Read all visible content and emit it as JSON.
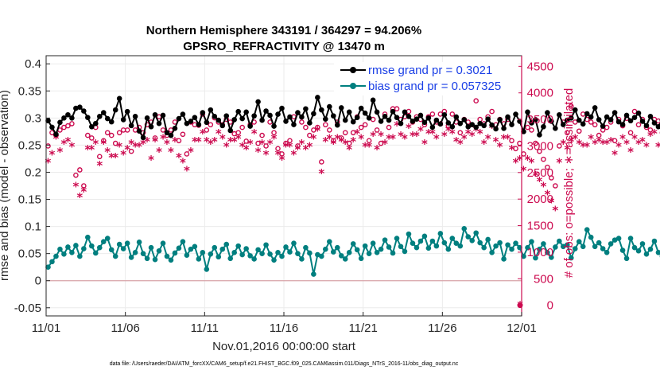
{
  "colors": {
    "rmse": "#000000",
    "bias": "#007f7f",
    "obs": "#cc0a4f",
    "zero_line": "#d9a3a8",
    "legend_text": "#1a3fe6",
    "grid": "#ebebeb"
  },
  "chart_data": {
    "type": "line",
    "title": "Northern Hemisphere 343191 / 364297 = 94.206%",
    "subtitle": "GPSRO_REFRACTIVITY @ 13470 m",
    "xlabel": "Nov.01,2016 00:00:00 start",
    "ylabel_left": "rmse and bias (model - observation)",
    "ylabel_right": "# of obs: o=possible; ∗=assimilated",
    "footnote": "data file: /Users/raeder/DAI/ATM_forcXX/CAM6_setup/f.e21.FHIST_BGC.f09_025.CAM6assim.011/Diags_NTrS_2016-11/obs_diag_output.nc",
    "x_tick_labels": [
      "11/01",
      "11/06",
      "11/11",
      "11/16",
      "11/21",
      "11/26",
      "12/01"
    ],
    "x_tick_days": [
      0,
      5,
      10,
      15,
      20,
      25,
      30
    ],
    "xlim": [
      0,
      30
    ],
    "ylim_left": [
      -0.065,
      0.415
    ],
    "left_ticks": [
      -0.05,
      0,
      0.05,
      0.1,
      0.15,
      0.2,
      0.25,
      0.3,
      0.35,
      0.4
    ],
    "left_tick_labels": [
      "-0.05",
      "0",
      "0.05",
      "0.1",
      "0.15",
      "0.2",
      "0.25",
      "0.3",
      "0.35",
      "0.4"
    ],
    "ylim_right": [
      -200,
      4700
    ],
    "right_ticks": [
      0,
      500,
      1000,
      1500,
      2000,
      2500,
      3000,
      3500,
      4000,
      4500
    ],
    "right_tick_labels": [
      "0",
      "500",
      "1000",
      "1500",
      "2000",
      "2500",
      "3000",
      "3500",
      "4000",
      "4500"
    ],
    "legend": [
      {
        "name": "rmse grand pr = 0.3021",
        "series": "rmse"
      },
      {
        "name": "bias grand pr = 0.057325",
        "series": "bias"
      }
    ],
    "legend_position": "top-right",
    "step_days": 0.25,
    "series": [
      {
        "name": "rmse",
        "axis": "left",
        "values": [
          0.295,
          0.283,
          0.27,
          0.292,
          0.3,
          0.306,
          0.3,
          0.318,
          0.32,
          0.313,
          0.301,
          0.284,
          0.29,
          0.303,
          0.31,
          0.299,
          0.293,
          0.315,
          0.336,
          0.297,
          0.312,
          0.286,
          0.303,
          0.276,
          0.264,
          0.3,
          0.284,
          0.306,
          0.29,
          0.305,
          0.273,
          0.268,
          0.281,
          0.299,
          0.307,
          0.29,
          0.294,
          0.301,
          0.288,
          0.31,
          0.292,
          0.315,
          0.303,
          0.296,
          0.286,
          0.304,
          0.277,
          0.297,
          0.312,
          0.299,
          0.311,
          0.285,
          0.304,
          0.33,
          0.296,
          0.313,
          0.305,
          0.285,
          0.307,
          0.318,
          0.294,
          0.302,
          0.288,
          0.31,
          0.302,
          0.317,
          0.291,
          0.308,
          0.338,
          0.315,
          0.298,
          0.321,
          0.304,
          0.287,
          0.319,
          0.296,
          0.311,
          0.293,
          0.301,
          0.318,
          0.309,
          0.3,
          0.333,
          0.311,
          0.294,
          0.303,
          0.296,
          0.312,
          0.301,
          0.29,
          0.311,
          0.303,
          0.294,
          0.298,
          0.305,
          0.292,
          0.3,
          0.283,
          0.296,
          0.289,
          0.306,
          0.291,
          0.284,
          0.302,
          0.29,
          0.297,
          0.284,
          0.288,
          0.283,
          0.29,
          0.286,
          0.298,
          0.287,
          0.28,
          0.297,
          0.281,
          0.302,
          0.288,
          0.307,
          0.294,
          0.275,
          0.311,
          0.291,
          0.297,
          0.269,
          0.284,
          0.31,
          0.294,
          0.281,
          0.306,
          0.288,
          0.296,
          0.3,
          0.315,
          0.296,
          0.289,
          0.308,
          0.302,
          0.319,
          0.297,
          0.285,
          0.302,
          0.297,
          0.31,
          0.293,
          0.288,
          0.305,
          0.295,
          0.301,
          0.309,
          0.294,
          0.286,
          0.303,
          0.291,
          0.284,
          0.296,
          0.284,
          0.278,
          0.29,
          0.288,
          0.297,
          0.304,
          0.29,
          0.293,
          0.305,
          0.295,
          0.309,
          0.301,
          0.296,
          0.318,
          0.304,
          0.297,
          0.31,
          0.29,
          0.324,
          0.302,
          0.296,
          0.307,
          0.321,
          0.304,
          0.316,
          0.301,
          0.305,
          0.296,
          0.31,
          0.3,
          0.306,
          0.319,
          0.303,
          0.298,
          0.309,
          0.302,
          0.32,
          0.301,
          0.31,
          0.296,
          0.302,
          0.329,
          0.3,
          0.318,
          0.306,
          0.296,
          0.311,
          0.301,
          0.31,
          0.315,
          0.305,
          0.322,
          0.302,
          0.315,
          0.324,
          0.303,
          0.319,
          0.326,
          0.309,
          0.297,
          0.311,
          0.326,
          0.304,
          0.346,
          0.317,
          0.331,
          0.306,
          0.32,
          0.312,
          0.325,
          0.343,
          0.324,
          0.307
        ]
      },
      {
        "name": "bias",
        "axis": "left",
        "values": [
          0.025,
          0.035,
          0.045,
          0.058,
          0.049,
          0.062,
          0.052,
          0.065,
          0.045,
          0.059,
          0.08,
          0.064,
          0.051,
          0.061,
          0.072,
          0.078,
          0.057,
          0.045,
          0.067,
          0.059,
          0.069,
          0.043,
          0.052,
          0.071,
          0.05,
          0.041,
          0.061,
          0.039,
          0.055,
          0.069,
          0.045,
          0.038,
          0.051,
          0.06,
          0.072,
          0.047,
          0.058,
          0.063,
          0.04,
          0.052,
          0.021,
          0.049,
          0.061,
          0.044,
          0.058,
          0.067,
          0.041,
          0.052,
          0.064,
          0.048,
          0.059,
          0.046,
          0.04,
          0.057,
          0.05,
          0.066,
          0.049,
          0.038,
          0.052,
          0.045,
          0.062,
          0.053,
          0.069,
          0.05,
          0.04,
          0.061,
          0.051,
          0.012,
          0.048,
          0.045,
          0.058,
          0.072,
          0.053,
          0.061,
          0.046,
          0.04,
          0.052,
          0.068,
          0.057,
          0.041,
          0.064,
          0.05,
          0.069,
          0.052,
          0.058,
          0.075,
          0.062,
          0.051,
          0.078,
          0.063,
          0.054,
          0.086,
          0.069,
          0.061,
          0.073,
          0.082,
          0.06,
          0.073,
          0.064,
          0.087,
          0.07,
          0.058,
          0.078,
          0.069,
          0.064,
          0.096,
          0.081,
          0.074,
          0.088,
          0.07,
          0.061,
          0.076,
          0.052,
          0.064,
          0.07,
          0.04,
          0.066,
          0.058,
          0.069,
          0.061,
          0.045,
          0.061,
          0.072,
          0.042,
          0.058,
          0.068,
          0.052,
          0.043,
          0.062,
          0.073,
          0.063,
          0.066,
          0.042,
          0.059,
          0.072,
          0.063,
          0.094,
          0.08,
          0.063,
          0.07,
          0.059,
          0.052,
          0.068,
          0.075,
          0.078,
          0.056,
          0.041,
          0.078,
          0.061,
          0.055,
          0.068,
          0.049,
          0.058,
          0.073,
          0.052,
          0.045,
          0.059,
          0.053,
          0.048,
          0.061,
          0.052,
          0.07,
          0.056,
          0.06,
          0.045,
          0.052,
          0.068,
          0.057,
          0.082,
          0.056,
          0.045,
          0.061,
          0.069,
          0.058,
          0.088,
          0.068,
          0.056,
          0.07,
          0.072,
          0.055,
          0.048,
          0.061,
          0.052,
          0.071,
          0.073,
          0.057,
          0.065,
          0.049,
          0.058,
          0.065,
          0.05,
          0.042,
          0.058,
          0.068,
          0.05,
          0.056,
          0.066,
          0.072,
          0.056,
          0.042,
          0.061,
          0.049,
          0.066,
          0.061,
          0.053,
          0.071,
          0.056,
          0.047,
          0.059,
          0.065,
          0.072,
          0.059,
          0.05,
          0.064,
          0.042,
          0.056,
          0.061,
          0.052,
          0.066,
          0.071,
          0.054,
          0.061,
          0.06,
          0.054,
          0.057,
          0.07,
          0.061,
          0.052,
          0.06,
          0.072,
          0.063,
          0.049,
          0.078,
          0.065,
          0.058,
          0.045,
          0.028,
          0.037,
          0.059,
          0.076,
          0.082,
          0.091,
          0.106,
          0.097,
          0.085
        ]
      },
      {
        "name": "possible",
        "axis": "right",
        "values": [
          3000,
          3250,
          3200,
          3300,
          3350,
          3380,
          3420,
          2450,
          2550,
          2250,
          3200,
          3150,
          3350,
          2800,
          3100,
          3250,
          3200,
          3050,
          3250,
          3300,
          3300,
          2900,
          3300,
          3350,
          3250,
          3400,
          3450,
          3150,
          3550,
          3300,
          3200,
          3300,
          3450,
          3100,
          3220,
          2850,
          3450,
          3400,
          3390,
          3600,
          3300,
          3400,
          3530,
          3450,
          3400,
          3500,
          3450,
          3230,
          3250,
          3350,
          3090,
          3400,
          3450,
          3050,
          3200,
          3000,
          3450,
          3250,
          2950,
          2850,
          3050,
          3100,
          3550,
          3000,
          3450,
          3350,
          3200,
          3300,
          3350,
          2700,
          3400,
          3300,
          3100,
          3450,
          3150,
          3250,
          3050,
          3250,
          3550,
          3350,
          3400,
          3100,
          3500,
          3300,
          3050,
          3600,
          3350,
          3700,
          3700,
          3500,
          3550,
          3650,
          3450,
          3550,
          3500,
          3400,
          3550,
          3600,
          3450,
          3600,
          3650,
          3380,
          3600,
          3450,
          3250,
          3500,
          3450,
          3400,
          3850,
          3500,
          3420,
          3550,
          3650,
          3400,
          3500,
          3420,
          3500,
          3100,
          2950,
          3050,
          2850,
          3350,
          3300,
          3050,
          2900,
          2750,
          2600,
          2400,
          2250,
          3000,
          3450,
          3250,
          3750,
          3450,
          3280,
          3600,
          3500,
          3450,
          3400,
          3200,
          3300,
          3350,
          3450,
          3100,
          3500,
          3380,
          3520,
          3250,
          3650,
          3400,
          3500,
          3350,
          3300,
          3500,
          3470,
          3250,
          3400,
          3020,
          3000,
          3100,
          2950,
          2600,
          3000,
          2950,
          3100,
          3000,
          2880,
          2950,
          2900,
          2750,
          2800,
          3350,
          3500,
          3500,
          3450,
          3400,
          3000,
          2950,
          2900,
          3050,
          2850,
          2800,
          3000,
          2950,
          3050,
          2900,
          3000,
          2950,
          2850,
          2800,
          3000,
          2900,
          3100,
          3000,
          2950,
          3000,
          2950,
          3050,
          2850,
          3100,
          3000,
          3050,
          3000,
          2950,
          2920,
          3050,
          2780,
          3050,
          3000,
          2950,
          2700,
          2900,
          3050,
          2650,
          2950,
          2980,
          2500,
          2950,
          2880,
          3000,
          3250,
          3200,
          2700,
          2900,
          3000,
          2850,
          2800,
          2870,
          3150,
          2600,
          2900,
          2550,
          2650,
          2450,
          2250,
          2150,
          2200,
          2300,
          2250,
          2300,
          2450,
          2550
        ]
      },
      {
        "name": "assimilated",
        "axis": "right",
        "values": [
          2700,
          2850,
          3150,
          2900,
          3050,
          3100,
          3000,
          2250,
          2050,
          2150,
          2950,
          2950,
          3050,
          2650,
          3050,
          2900,
          2800,
          2800,
          3000,
          2850,
          2950,
          3050,
          3000,
          3000,
          3050,
          3100,
          2750,
          3100,
          2900,
          3150,
          3050,
          2900,
          3100,
          2800,
          2700,
          2550,
          2900,
          3100,
          3100,
          3250,
          3100,
          3050,
          3100,
          3250,
          3150,
          3000,
          3100,
          3100,
          3150,
          3000,
          2950,
          3050,
          3250,
          2900,
          3050,
          2850,
          3050,
          3150,
          2850,
          2750,
          3000,
          3000,
          2850,
          2950,
          3050,
          2950,
          3000,
          3150,
          3300,
          2500,
          3100,
          3150,
          3050,
          3150,
          3100,
          3050,
          2950,
          3100,
          3250,
          3150,
          3000,
          3000,
          3200,
          2950,
          3200,
          3050,
          3150,
          3150,
          3400,
          3200,
          3150,
          3350,
          3200,
          3200,
          3300,
          3050,
          3250,
          3250,
          3150,
          3400,
          3200,
          3300,
          3250,
          3100,
          3050,
          3150,
          3250,
          3200,
          3300,
          3250,
          3050,
          3150,
          3350,
          3100,
          3000,
          3150,
          3150,
          2950,
          2700,
          2750,
          2550,
          2750,
          2700,
          2450,
          2350,
          2250,
          2100,
          1950,
          1800,
          2700,
          3050,
          2950,
          3100,
          3150,
          3050,
          3000,
          3000,
          3150,
          3050,
          3100,
          3050,
          3050,
          3100,
          2850,
          3000,
          3150,
          3050,
          2900,
          3150,
          3050,
          3100,
          3000,
          3200,
          3250,
          3000,
          3000,
          3050,
          2950,
          2800,
          2750,
          2700,
          2350,
          2800,
          2700,
          2850,
          2750,
          2600,
          2700,
          2750,
          2500,
          2600,
          2850,
          2650,
          2650,
          2950,
          2900,
          2650,
          2750,
          2700,
          2600,
          2650,
          2550,
          2650,
          2700,
          2750,
          2550,
          2650,
          2700,
          2600,
          2500,
          2650,
          2600,
          2750,
          2650,
          2600,
          2700,
          2600,
          2750,
          2600,
          2750,
          2700,
          2650,
          2700,
          2600,
          2650,
          2700,
          2600,
          2750,
          2650,
          2600,
          2500,
          2550,
          2750,
          2400,
          2600,
          2650,
          2300,
          2650,
          2550,
          2700,
          2850,
          2900,
          2500,
          2650,
          2700,
          2600,
          2550,
          2550,
          2750,
          2350,
          2550,
          2300,
          2400,
          2100,
          1950,
          1850,
          1950,
          2150,
          2250,
          2250,
          2300,
          2450
        ]
      }
    ]
  }
}
